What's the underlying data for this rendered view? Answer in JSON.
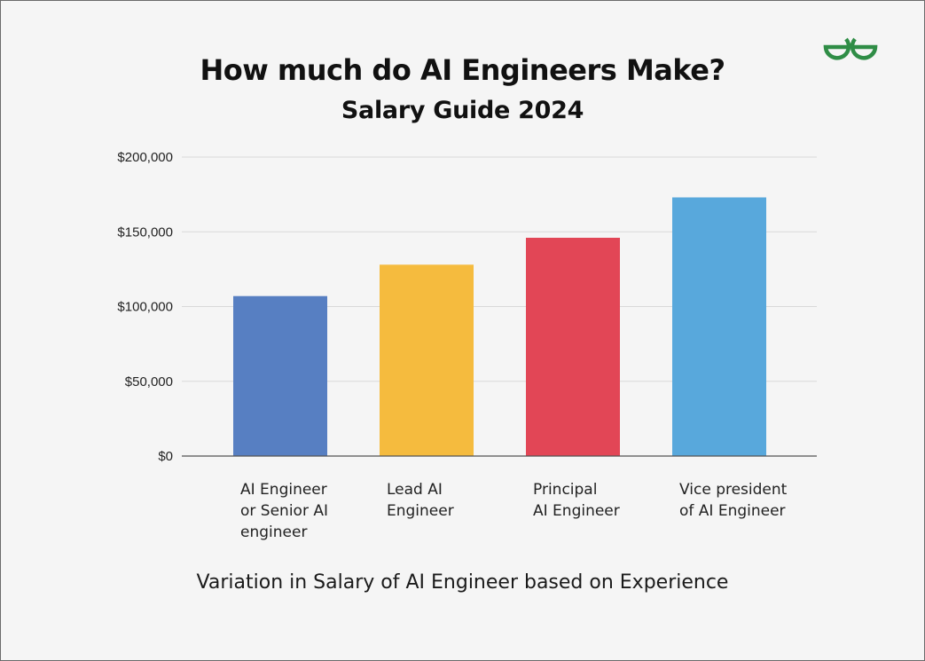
{
  "header": {
    "title": "How much do AI Engineers Make?",
    "subtitle": "Salary Guide 2024",
    "logo_icon": "geeksforgeeks-logo-icon",
    "logo_color": "#2f8d46"
  },
  "footer": {
    "caption": "Variation in Salary of AI Engineer based on Experience"
  },
  "chart_data": {
    "type": "bar",
    "title": "How much do AI Engineers Make?",
    "subtitle": "Salary Guide 2024",
    "xlabel": "Variation in Salary of AI Engineer based on Experience",
    "ylabel": "",
    "categories": [
      [
        "AI Engineer",
        "or Senior AI",
        "engineer"
      ],
      [
        "Lead AI",
        "Engineer"
      ],
      [
        "Principal",
        "AI Engineer"
      ],
      [
        "Vice president",
        "of AI Engineer"
      ]
    ],
    "values": [
      107000,
      128000,
      146000,
      173000
    ],
    "colors": [
      "#577fc2",
      "#f5bb3e",
      "#e24656",
      "#58a8dc"
    ],
    "ylim": [
      0,
      200000
    ],
    "yticks": [
      0,
      50000,
      100000,
      150000,
      200000
    ],
    "ytick_labels": [
      "$0",
      "$50,000",
      "$100,000",
      "$150,000",
      "$200,000"
    ],
    "grid": true,
    "legend": "none"
  }
}
